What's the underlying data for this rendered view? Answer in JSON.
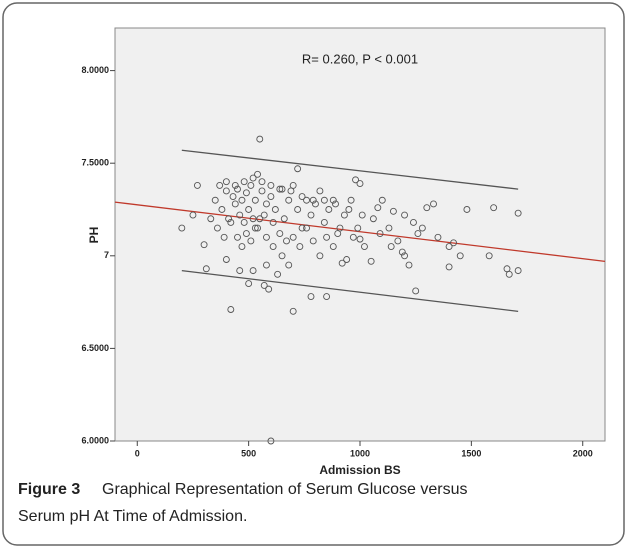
{
  "chart_data": {
    "type": "scatter",
    "annotation": "R= 0.260, P < 0.001",
    "x_label": "Admission BS",
    "y_label": "PH",
    "xlim": [
      -100,
      2100
    ],
    "ylim": [
      6.0,
      8.23
    ],
    "xticks": [
      0,
      500,
      1000,
      1500,
      2000
    ],
    "yticks": [
      {
        "value": 6.0,
        "label": "6.0000"
      },
      {
        "value": 6.5,
        "label": "6.5000"
      },
      7,
      {
        "value": 7.5,
        "label": "7.5000"
      },
      {
        "value": 8.0,
        "label": "8.0000"
      }
    ],
    "marker_color": "#555555",
    "background": "#f0f0f0",
    "series": [
      {
        "x": [
          550,
          600,
          310,
          1710,
          1710,
          1600,
          1480,
          1420,
          1400,
          1450,
          1400,
          1300,
          1330,
          1250,
          1200,
          1220,
          1240,
          1150,
          1100,
          980,
          1000,
          700,
          420,
          500,
          570,
          590,
          780,
          850,
          650,
          920,
          1050,
          1000,
          1580,
          1660,
          1670,
          200,
          250,
          270,
          300,
          720,
          540,
          350,
          380,
          400,
          410,
          430,
          440,
          450,
          460,
          470,
          480,
          490,
          500,
          510,
          520,
          530,
          540,
          560,
          570,
          580,
          600,
          610,
          620,
          640,
          660,
          680,
          700,
          720,
          740,
          760,
          780,
          800,
          820,
          840,
          860,
          880,
          900,
          930,
          960,
          990,
          360,
          390,
          420,
          450,
          470,
          490,
          510,
          530,
          550,
          580,
          610,
          640,
          670,
          700,
          730,
          760,
          790,
          820,
          850,
          880,
          910,
          940,
          970,
          1020,
          1060,
          1090,
          1130,
          1170,
          1200,
          1260,
          330,
          370,
          400,
          440,
          480,
          520,
          560,
          600,
          650,
          690,
          740,
          790,
          840,
          890,
          950,
          1010,
          1080,
          1140,
          1190,
          1280,
          1350,
          400,
          460,
          520,
          580,
          630,
          680
        ],
        "y": [
          7.63,
          6.0,
          6.93,
          7.23,
          6.92,
          7.26,
          7.25,
          7.07,
          7.05,
          7.0,
          6.94,
          7.26,
          7.28,
          6.81,
          7.0,
          6.95,
          7.18,
          7.24,
          7.3,
          7.41,
          7.39,
          6.7,
          6.71,
          6.85,
          6.84,
          6.82,
          6.78,
          6.78,
          7.0,
          6.96,
          6.97,
          7.09,
          7.0,
          6.93,
          6.9,
          7.15,
          7.22,
          7.38,
          7.06,
          7.47,
          7.44,
          7.3,
          7.25,
          7.35,
          7.2,
          7.32,
          7.28,
          7.36,
          7.22,
          7.3,
          7.18,
          7.34,
          7.25,
          7.38,
          7.2,
          7.3,
          7.15,
          7.35,
          7.22,
          7.28,
          7.32,
          7.18,
          7.25,
          7.36,
          7.2,
          7.3,
          7.38,
          7.25,
          7.15,
          7.3,
          7.22,
          7.28,
          7.35,
          7.18,
          7.25,
          7.3,
          7.12,
          7.22,
          7.3,
          7.15,
          7.15,
          7.1,
          7.18,
          7.1,
          7.05,
          7.12,
          7.08,
          7.15,
          7.2,
          7.1,
          7.05,
          7.12,
          7.08,
          7.1,
          7.05,
          7.15,
          7.08,
          7.0,
          7.1,
          7.05,
          7.15,
          6.98,
          7.1,
          7.05,
          7.2,
          7.12,
          7.15,
          7.08,
          7.22,
          7.12,
          7.2,
          7.38,
          7.4,
          7.38,
          7.4,
          7.42,
          7.4,
          7.38,
          7.36,
          7.35,
          7.32,
          7.3,
          7.3,
          7.28,
          7.25,
          7.22,
          7.26,
          7.05,
          7.02,
          7.15,
          7.1,
          6.98,
          6.92,
          6.92,
          6.95,
          6.9,
          6.95
        ]
      }
    ],
    "fit_lines": [
      {
        "x": [
          -100,
          2100
        ],
        "y": [
          7.29,
          6.97
        ],
        "color": "#c0392b"
      },
      {
        "x": [
          200,
          1710
        ],
        "y": [
          7.57,
          7.36
        ],
        "color": "#555555"
      },
      {
        "x": [
          200,
          1710
        ],
        "y": [
          6.92,
          6.7
        ],
        "color": "#555555"
      }
    ]
  },
  "caption": {
    "label": "Figure 3",
    "text_1": "Graphical Representation of Serum Glucose versus",
    "text_2": "Serum pH At Time of Admission."
  }
}
